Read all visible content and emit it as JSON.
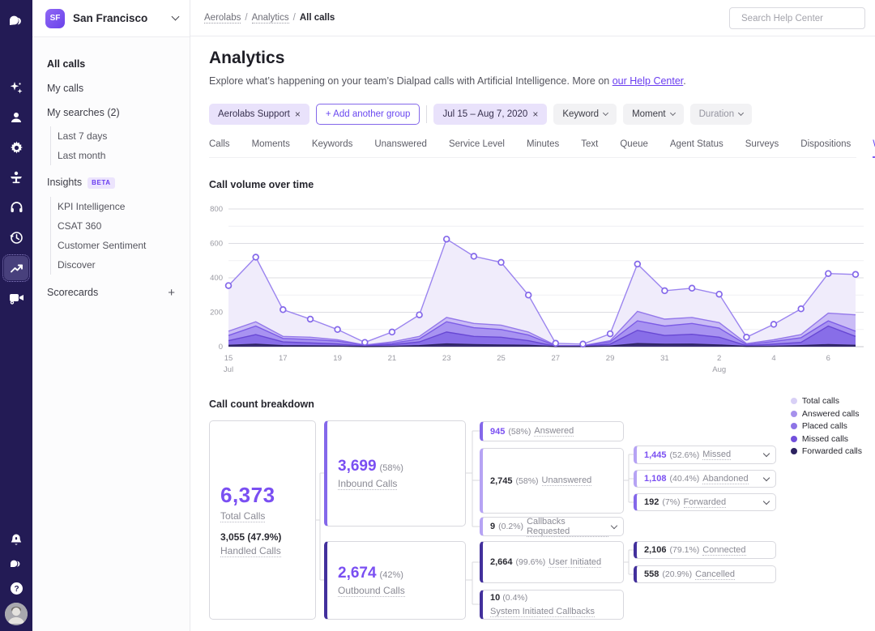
{
  "brand": {
    "accent": "#6a48f0",
    "rail_bg": "#231b55",
    "light_purple": "#e9e2fb"
  },
  "rail": {
    "icons": [
      "dialpad-logo",
      "ai-sparkles",
      "contacts",
      "settings-gear",
      "front-desk",
      "headset",
      "call-history",
      "analytics-trend",
      "screen-recording",
      "notifications-bell",
      "dialpad-chat",
      "help",
      "user-avatar"
    ],
    "active_icon": "analytics-trend"
  },
  "sidebar": {
    "team_initials": "SF",
    "team_name": "San Francisco",
    "all_calls": "All calls",
    "my_calls": "My calls",
    "my_searches": "My searches (2)",
    "searches": [
      "Last 7 days",
      "Last month"
    ],
    "insights": "Insights",
    "insights_badge": "BETA",
    "insights_items": [
      "KPI Intelligence",
      "CSAT 360",
      "Customer Sentiment",
      "Discover"
    ],
    "scorecards": "Scorecards",
    "scorecards_add": "+"
  },
  "topbar": {
    "breadcrumb": [
      "Aerolabs",
      "Analytics",
      "All calls"
    ],
    "search_placeholder": "Search Help Center"
  },
  "header": {
    "title": "Analytics",
    "subtitle_prefix": "Explore what’s happening on your team’s Dialpad calls with Artificial Intelligence. More on ",
    "subtitle_link": "our Help Center",
    "subtitle_suffix": "."
  },
  "filters": {
    "group_chip": "Aerolabs Support",
    "add_group": "+ Add another group",
    "date_chip": "Jul 15 – Aug 7, 2020",
    "keyword": "Keyword",
    "moment": "Moment",
    "duration": "Duration",
    "close_glyph": "×"
  },
  "tabs": {
    "items": [
      "Calls",
      "Moments",
      "Keywords",
      "Unanswered",
      "Service Level",
      "Minutes",
      "Text",
      "Queue",
      "Agent Status",
      "Surveys",
      "Dispositions",
      "Weekly Averages"
    ],
    "active": "Weekly Averages"
  },
  "chart_data": {
    "type": "area",
    "title": "Call volume over time",
    "x_range": "Jul 15 – Aug 7, 2020 (daily)",
    "ylim": [
      0,
      800
    ],
    "yticks": [
      0,
      200,
      400,
      600,
      800
    ],
    "grid": true,
    "x_ticks": [
      [
        0,
        "15"
      ],
      [
        2,
        "17"
      ],
      [
        4,
        "19"
      ],
      [
        6,
        "21"
      ],
      [
        8,
        "23"
      ],
      [
        10,
        "25"
      ],
      [
        12,
        "27"
      ],
      [
        14,
        "29"
      ],
      [
        16,
        "31"
      ],
      [
        18,
        "2"
      ],
      [
        20,
        "4"
      ],
      [
        22,
        "6"
      ]
    ],
    "x_months": [
      [
        0,
        "Jul"
      ],
      [
        18,
        "Aug"
      ]
    ],
    "series": [
      {
        "name": "Total calls",
        "stroke": "#9b84ef",
        "fill": "#f0ecfb",
        "markers": true,
        "values": [
          355,
          520,
          215,
          160,
          100,
          25,
          85,
          185,
          625,
          525,
          490,
          300,
          20,
          15,
          75,
          480,
          325,
          340,
          305,
          55,
          130,
          220,
          425,
          420
        ]
      },
      {
        "name": "Answered calls",
        "stroke": "#9478ea",
        "fill": "rgba(163,140,242,0.5)",
        "markers": false,
        "values": [
          90,
          145,
          60,
          55,
          40,
          10,
          28,
          60,
          170,
          135,
          125,
          85,
          8,
          6,
          35,
          205,
          160,
          170,
          140,
          18,
          40,
          70,
          195,
          185
        ]
      },
      {
        "name": "Placed calls",
        "stroke": "#7c5ce6",
        "fill": "rgba(134,106,236,0.5)",
        "markers": false,
        "values": [
          65,
          120,
          48,
          42,
          32,
          8,
          20,
          45,
          145,
          110,
          100,
          68,
          5,
          5,
          28,
          150,
          120,
          135,
          108,
          12,
          30,
          52,
          150,
          90
        ]
      },
      {
        "name": "Missed calls",
        "stroke": "#6848d4",
        "fill": "rgba(110,80,224,0.55)",
        "markers": false,
        "values": [
          35,
          70,
          28,
          22,
          16,
          4,
          12,
          28,
          85,
          60,
          55,
          35,
          3,
          2,
          15,
          95,
          65,
          72,
          55,
          6,
          15,
          25,
          120,
          60
        ]
      },
      {
        "name": "Forwarded calls",
        "stroke": "#2c2260",
        "fill": "rgba(44,34,96,0.85)",
        "markers": false,
        "values": [
          8,
          14,
          6,
          5,
          4,
          1,
          2,
          6,
          16,
          12,
          10,
          8,
          1,
          1,
          4,
          18,
          14,
          15,
          10,
          2,
          3,
          6,
          12,
          8
        ]
      }
    ]
  },
  "legend": {
    "items": [
      {
        "label": "Total calls",
        "color": "#d8d0f6"
      },
      {
        "label": "Answered calls",
        "color": "#a691ec"
      },
      {
        "label": "Placed calls",
        "color": "#8d74e6"
      },
      {
        "label": "Missed calls",
        "color": "#7250dc"
      },
      {
        "label": "Forwarded calls",
        "color": "#2c2260"
      }
    ]
  },
  "breakdown": {
    "title": "Call count breakdown",
    "total": {
      "value": "6,373",
      "label": "Total Calls",
      "sub_value": "3,055 (47.9%)",
      "sub_label": "Handled Calls"
    },
    "inbound": {
      "value": "3,699",
      "pct": "(58%)",
      "label": "Inbound Calls"
    },
    "outbound": {
      "value": "2,674",
      "pct": "(42%)",
      "label": "Outbound Calls"
    },
    "answered": {
      "value": "945",
      "pct": "(58%)",
      "label": "Answered"
    },
    "unanswered": {
      "value": "2,745",
      "pct": "(58%)",
      "label": "Unanswered"
    },
    "callbacks": {
      "value": "9",
      "pct": "(0.2%)",
      "label": "Callbacks Requested"
    },
    "missed": {
      "value": "1,445",
      "pct": "(52.6%)",
      "label": "Missed"
    },
    "abandoned": {
      "value": "1,108",
      "pct": "(40.4%)",
      "label": "Abandoned"
    },
    "forwarded": {
      "value": "192",
      "pct": "(7%)",
      "label": "Forwarded"
    },
    "user_initiated": {
      "value": "2,664",
      "pct": "(99.6%)",
      "label": "User Initiated"
    },
    "system_initiated": {
      "value": "10",
      "pct": "(0.4%)",
      "label": "System Initiated Callbacks"
    },
    "connected": {
      "value": "2,106",
      "pct": "(79.1%)",
      "label": "Connected"
    },
    "cancelled": {
      "value": "558",
      "pct": "(20.9%)",
      "label": "Cancelled"
    }
  }
}
